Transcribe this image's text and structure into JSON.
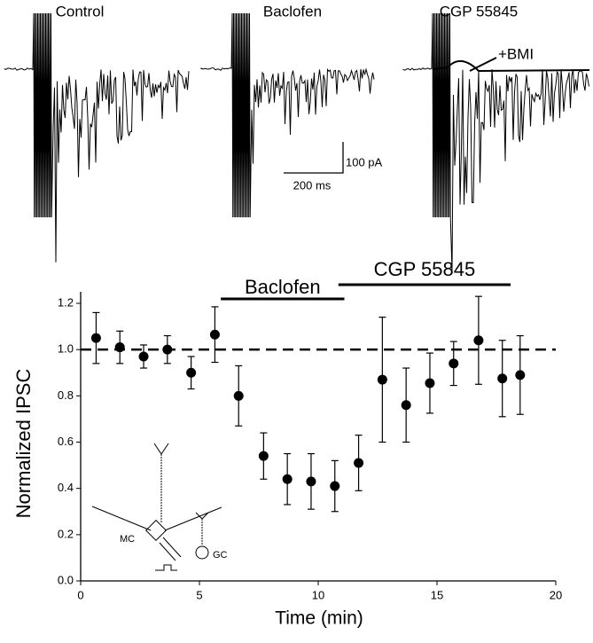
{
  "traces": {
    "labels": [
      "Control",
      "Baclofen",
      "CGP 55845"
    ],
    "annotation": "+BMI",
    "scale_current": "100 pA",
    "scale_time": "200 ms"
  },
  "inset": {
    "cell_1": "MC",
    "cell_2": "GC"
  },
  "chart_data": {
    "type": "scatter",
    "xlabel": "Time (min)",
    "ylabel": "Normalized IPSC",
    "x": [
      0.65,
      1.65,
      2.65,
      3.65,
      4.65,
      5.65,
      6.65,
      7.7,
      8.7,
      9.7,
      10.7,
      11.7,
      12.7,
      13.7,
      14.7,
      15.7,
      16.75,
      17.75,
      18.5
    ],
    "values": [
      1.05,
      1.01,
      0.97,
      1.0,
      0.9,
      1.065,
      0.8,
      0.54,
      0.44,
      0.43,
      0.41,
      0.51,
      0.87,
      0.76,
      0.855,
      0.94,
      1.04,
      0.875,
      0.89
    ],
    "errors": [
      0.11,
      0.07,
      0.05,
      0.06,
      0.07,
      0.12,
      0.13,
      0.1,
      0.11,
      0.12,
      0.11,
      0.12,
      0.27,
      0.16,
      0.13,
      0.095,
      0.19,
      0.165,
      0.17
    ],
    "color": "#000000",
    "reference_line": 1.0,
    "periods": [
      {
        "label": "Baclofen",
        "start": 5.9,
        "end": 11.1
      },
      {
        "label": "CGP 55845",
        "start": 10.85,
        "end": 18.1
      }
    ],
    "xlim": [
      0,
      20
    ],
    "ylim": [
      0,
      1.25
    ],
    "xticks": [
      0,
      5,
      10,
      15,
      20
    ],
    "yticks": [
      {
        "value": 0,
        "label": "0.0"
      },
      0.2,
      0.4,
      0.6,
      0.8,
      {
        "value": 1,
        "label": "1.0"
      },
      1.2
    ]
  }
}
